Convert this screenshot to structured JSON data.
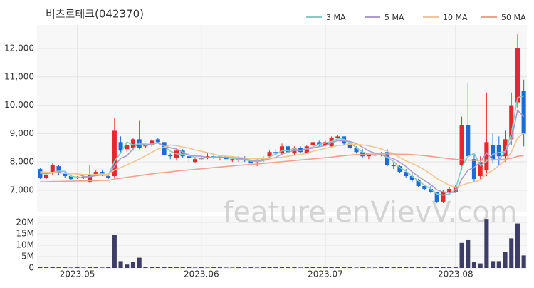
{
  "chart_data": {
    "type": "candlestick",
    "title": "비츠로테크(042370)",
    "watermark": "feature.enVievV.com",
    "categories": [
      null,
      null,
      null,
      null,
      null,
      null,
      "2023.05",
      null,
      null,
      null,
      null,
      null,
      null,
      null,
      null,
      null,
      null,
      null,
      null,
      null,
      null,
      null,
      null,
      null,
      null,
      null,
      "2023.06",
      null,
      null,
      null,
      null,
      null,
      null,
      null,
      null,
      null,
      null,
      null,
      null,
      null,
      null,
      null,
      null,
      null,
      null,
      null,
      "2023.07",
      null,
      null,
      null,
      null,
      null,
      null,
      null,
      null,
      null,
      null,
      null,
      null,
      null,
      null,
      null,
      null,
      null,
      null,
      null,
      null,
      "2023.08",
      null,
      null,
      null,
      null,
      null,
      null,
      null,
      null,
      null,
      null,
      null
    ],
    "open": [
      7750,
      7450,
      7600,
      7850,
      7600,
      7500,
      7450,
      7480,
      7300,
      7550,
      7650,
      7500,
      7500,
      8700,
      8450,
      8500,
      8800,
      8550,
      8600,
      8800,
      8700,
      8250,
      8150,
      8400,
      8200,
      8000,
      8100,
      8150,
      8200,
      8150,
      8200,
      8050,
      8100,
      8150,
      8050,
      8000,
      8050,
      8200,
      8350,
      8300,
      8550,
      8300,
      8500,
      8300,
      8600,
      8700,
      8600,
      8550,
      8850,
      8900,
      8650,
      8500,
      8350,
      8200,
      8250,
      8300,
      8350,
      7900,
      7850,
      7650,
      7500,
      7350,
      7150,
      7050,
      6950,
      6600,
      6950,
      6950,
      7900,
      9300,
      8100,
      7500,
      7700,
      8600,
      8600,
      8200,
      8800,
      10100,
      10500
    ],
    "high": [
      7800,
      7600,
      7950,
      7900,
      7650,
      7550,
      7500,
      7520,
      7900,
      7700,
      7700,
      7600,
      9550,
      8900,
      8650,
      8850,
      9450,
      8650,
      8800,
      8850,
      8750,
      8300,
      8450,
      8450,
      8300,
      8150,
      8200,
      8300,
      8300,
      8250,
      8250,
      8150,
      8200,
      8200,
      8100,
      8100,
      8200,
      8400,
      8450,
      8650,
      8600,
      8550,
      8550,
      8600,
      8750,
      8750,
      8750,
      8900,
      8950,
      8900,
      8700,
      8550,
      8450,
      8300,
      8300,
      8350,
      8450,
      8000,
      7900,
      7750,
      7600,
      7400,
      7200,
      7150,
      6950,
      7000,
      7100,
      7200,
      9600,
      10800,
      8300,
      8200,
      10450,
      9000,
      8900,
      9100,
      10450,
      12500,
      10900
    ],
    "low": [
      7400,
      7400,
      7550,
      7550,
      7450,
      7350,
      7400,
      7400,
      7250,
      7500,
      7500,
      7400,
      7450,
      8300,
      8350,
      8400,
      8450,
      8500,
      8550,
      8650,
      8200,
      8100,
      8050,
      8150,
      8000,
      7950,
      8050,
      8100,
      8100,
      8050,
      8100,
      8000,
      8000,
      8000,
      7850,
      7850,
      8000,
      8150,
      8250,
      8250,
      8300,
      8250,
      8300,
      8300,
      8550,
      8550,
      8550,
      8500,
      8800,
      8600,
      8450,
      8300,
      8150,
      8100,
      8200,
      8200,
      7850,
      7750,
      7600,
      7450,
      7300,
      7100,
      7000,
      6900,
      6550,
      6550,
      6850,
      6900,
      7700,
      8200,
      7300,
      7400,
      7500,
      7950,
      7900,
      8000,
      8600,
      9900,
      8550
    ],
    "close": [
      7450,
      7550,
      7900,
      7600,
      7500,
      7400,
      7480,
      7450,
      7550,
      7650,
      7550,
      7450,
      9100,
      8400,
      8600,
      8800,
      8500,
      8600,
      8750,
      8700,
      8250,
      8200,
      8400,
      8200,
      8150,
      8100,
      8150,
      8200,
      8150,
      8200,
      8100,
      8100,
      8100,
      8050,
      7950,
      8050,
      8150,
      8350,
      8300,
      8550,
      8350,
      8500,
      8350,
      8550,
      8700,
      8600,
      8700,
      8850,
      8900,
      8650,
      8500,
      8350,
      8200,
      8250,
      8250,
      8300,
      7900,
      7850,
      7650,
      7500,
      7350,
      7150,
      7050,
      6950,
      6600,
      6950,
      7050,
      7100,
      9300,
      8200,
      7400,
      8000,
      8700,
      8100,
      8200,
      8800,
      10000,
      12000,
      9000
    ],
    "volume": [
      400000,
      300000,
      500000,
      300000,
      300000,
      200000,
      300000,
      200000,
      500000,
      300000,
      200000,
      300000,
      14500000,
      3000000,
      1500000,
      2500000,
      4500000,
      600000,
      500000,
      600000,
      500000,
      400000,
      300000,
      300000,
      300000,
      200000,
      300000,
      200000,
      300000,
      300000,
      200000,
      200000,
      300000,
      200000,
      300000,
      200000,
      300000,
      500000,
      300000,
      600000,
      300000,
      300000,
      200000,
      300000,
      400000,
      300000,
      300000,
      500000,
      400000,
      300000,
      300000,
      200000,
      300000,
      200000,
      200000,
      300000,
      400000,
      300000,
      300000,
      400000,
      300000,
      300000,
      300000,
      300000,
      500000,
      300000,
      300000,
      300000,
      11000000,
      12500000,
      2500000,
      2000000,
      21500000,
      3000000,
      3000000,
      7000000,
      13000000,
      19500000,
      5500000
    ],
    "up_color": "#e8262e",
    "down_color": "#1d6bd8",
    "volume_color": "#3d3d66",
    "series": [
      {
        "name": "3 MA",
        "color": "#7fd1c7",
        "values": [
          7600,
          7580,
          7630,
          7680,
          7670,
          7500,
          7460,
          7440,
          7490,
          7550,
          7580,
          7550,
          8030,
          8320,
          8700,
          8600,
          8630,
          8630,
          8620,
          8680,
          8570,
          8380,
          8280,
          8270,
          8250,
          8150,
          8130,
          8150,
          8170,
          8180,
          8150,
          8130,
          8100,
          8080,
          8030,
          8020,
          8050,
          8180,
          8270,
          8400,
          8400,
          8470,
          8400,
          8470,
          8530,
          8620,
          8670,
          8720,
          8820,
          8800,
          8680,
          8500,
          8350,
          8270,
          8230,
          8270,
          8150,
          8020,
          7800,
          7670,
          7500,
          7330,
          7180,
          7050,
          6870,
          6830,
          6870,
          7030,
          7820,
          8200,
          8300,
          7870,
          8030,
          8270,
          8330,
          8370,
          9000,
          10270,
          10330
        ]
      },
      {
        "name": "5 MA",
        "color": "#ad9ccf",
        "values": [
          7600,
          7600,
          7620,
          7630,
          7600,
          7590,
          7580,
          7490,
          7480,
          7520,
          7540,
          7530,
          7860,
          8130,
          8220,
          8470,
          8680,
          8580,
          8650,
          8670,
          8560,
          8500,
          8460,
          8350,
          8240,
          8210,
          8200,
          8160,
          8150,
          8160,
          8160,
          8150,
          8130,
          8110,
          8060,
          8050,
          8060,
          8110,
          8160,
          8280,
          8340,
          8410,
          8410,
          8460,
          8490,
          8540,
          8580,
          8680,
          8750,
          8740,
          8720,
          8650,
          8520,
          8390,
          8310,
          8270,
          8180,
          8110,
          7990,
          7840,
          7650,
          7490,
          7340,
          7200,
          7020,
          6940,
          6920,
          6930,
          7400,
          7710,
          7810,
          8000,
          8320,
          8080,
          8080,
          8360,
          8760,
          9820,
          9600
        ]
      },
      {
        "name": "10 MA",
        "color": "#f3c590",
        "values": [
          7650,
          7640,
          7630,
          7620,
          7600,
          7590,
          7580,
          7560,
          7550,
          7560,
          7570,
          7560,
          7720,
          7800,
          7900,
          8000,
          8100,
          8220,
          8340,
          8460,
          8520,
          8600,
          8570,
          8530,
          8490,
          8420,
          8380,
          8330,
          8270,
          8220,
          8200,
          8190,
          8160,
          8140,
          8120,
          8110,
          8110,
          8130,
          8140,
          8170,
          8200,
          8240,
          8260,
          8310,
          8380,
          8430,
          8480,
          8530,
          8580,
          8590,
          8630,
          8620,
          8600,
          8570,
          8520,
          8460,
          8380,
          8280,
          8160,
          8040,
          7950,
          7840,
          7720,
          7580,
          7420,
          7290,
          7180,
          7100,
          7180,
          7250,
          7290,
          7370,
          7590,
          7700,
          7880,
          8050,
          8350,
          8840,
          9010
        ]
      },
      {
        "name": "50 MA",
        "color": "#f3a090",
        "values": [
          7300,
          7300,
          7310,
          7310,
          7320,
          7320,
          7330,
          7330,
          7340,
          7340,
          7350,
          7350,
          7400,
          7430,
          7460,
          7490,
          7520,
          7550,
          7580,
          7610,
          7630,
          7650,
          7680,
          7700,
          7720,
          7740,
          7760,
          7780,
          7800,
          7820,
          7840,
          7860,
          7880,
          7900,
          7910,
          7930,
          7950,
          7970,
          7990,
          8010,
          8030,
          8050,
          8070,
          8090,
          8110,
          8130,
          8150,
          8170,
          8200,
          8220,
          8240,
          8260,
          8260,
          8270,
          8280,
          8290,
          8280,
          8280,
          8270,
          8270,
          8260,
          8240,
          8220,
          8200,
          8170,
          8140,
          8120,
          8090,
          8070,
          8070,
          8060,
          8060,
          8070,
          8070,
          8080,
          8100,
          8130,
          8200,
          8220
        ]
      }
    ],
    "ylim": [
      6220,
      12830
    ],
    "yticks": [
      {
        "value": 7000,
        "label": "7,000"
      },
      {
        "value": 8000,
        "label": "8,000"
      },
      {
        "value": 9000,
        "label": "9,000"
      },
      {
        "value": 10000,
        "label": "10,000"
      },
      {
        "value": 11000,
        "label": "11,000"
      },
      {
        "value": 12000,
        "label": "12,000"
      }
    ],
    "volume_ylim": [
      0,
      22800000
    ],
    "volume_yticks": [
      {
        "value": 0,
        "label": "0"
      },
      {
        "value": 5000000,
        "label": "5M"
      },
      {
        "value": 10000000,
        "label": "10M"
      },
      {
        "value": 15000000,
        "label": "15M"
      },
      {
        "value": 20000000,
        "label": "20M"
      }
    ],
    "grid": true
  }
}
